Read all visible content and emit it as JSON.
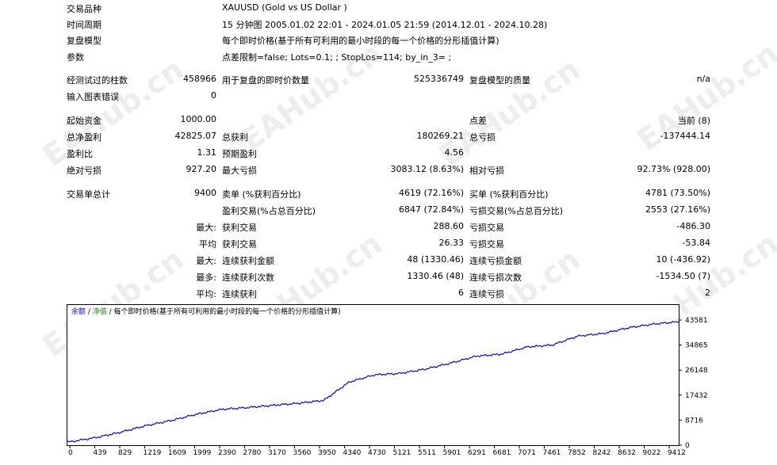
{
  "report": {
    "header": [
      {
        "label": "交易品种",
        "value": "XAUUSD (Gold vs US Dollar )"
      },
      {
        "label": "时间周期",
        "value": "15 分钟图 2005.01.02 22:01 - 2024.01.05 21:59 (2014.12.01 - 2024.10.28)"
      },
      {
        "label": "复盘模型",
        "value": "每个即时价格(基于所有可利用的最小时段的每一个价格的分形插值计算)"
      },
      {
        "label": "参数",
        "value": "点差限制=false; Lots=0.1; ; StopLos=114; by_in_3= ;"
      }
    ],
    "bars": {
      "label": "经测试过的柱数",
      "value": "458966",
      "ticks_label": "用于复盘的即时价数量",
      "ticks_value": "525336749",
      "quality_label": "复盘模型的质量",
      "quality_value": "n/a"
    },
    "errors": {
      "label": "输入图表错误",
      "value": "0"
    },
    "deposit": {
      "label": "起始资金",
      "value": "1000.00",
      "spread_label": "点差",
      "spread_value": "当前 (8)"
    },
    "net": {
      "label": "总净盈利",
      "value": "42825.07",
      "gp_label": "总获利",
      "gp_value": "180269.21",
      "gl_label": "总亏损",
      "gl_value": "-137444.14"
    },
    "pf": {
      "label": "盈利比",
      "value": "1.31",
      "ep_label": "预期盈利",
      "ep_value": "4.56"
    },
    "dd": {
      "label": "绝对亏损",
      "value": "927.20",
      "maxdd_label": "最大亏损",
      "maxdd_value": "3083.12 (8.63%)",
      "reldd_label": "相对亏损",
      "reldd_value": "92.73% (928.00)"
    },
    "trades": {
      "label": "交易单总计",
      "value": "9400",
      "short_label": "卖单 (%获利百分比)",
      "short_value": "4619 (72.16%)",
      "long_label": "买单 (%获利百分比)",
      "long_value": "4781 (73.50%)"
    },
    "pt": {
      "pt_label": "盈利交易(%占总百分比)",
      "pt_value": "6847 (72.84%)",
      "lt_label": "亏损交易(%占总百分比)",
      "lt_value": "2553 (27.16%)"
    },
    "largest": {
      "prefix": "最大:",
      "p_label": "获利交易",
      "p_value": "288.60",
      "l_label": "亏损交易",
      "l_value": "-486.30"
    },
    "average": {
      "prefix": "平均",
      "p_label": "获利交易",
      "p_value": "26.33",
      "l_label": "亏损交易",
      "l_value": "-53.84"
    },
    "maxcons": {
      "prefix": "最大:",
      "p_label": "连续获利金额",
      "p_value": "48 (1330.46)",
      "l_label": "连续亏损金额",
      "l_value": "10 (-436.92)"
    },
    "maxconsc": {
      "prefix": "最多:",
      "p_label": "连续获利次数",
      "p_value": "1330.46 (48)",
      "l_label": "连续亏损次数",
      "l_value": "-1534.50 (7)"
    },
    "avgcons": {
      "prefix": "平均:",
      "p_label": "连续获利",
      "p_value": "6",
      "l_label": "连续亏损",
      "l_value": "2"
    }
  },
  "legend": {
    "balance": "余额",
    "sep": " / ",
    "equity": "净值",
    "rest": " / 每个即时价格(基于所有可利用的最小时段的每一个价格的分形插值计算)"
  },
  "watermark": "EAHub.cn",
  "chart_data": {
    "type": "line",
    "x_ticks": [
      "0",
      "439",
      "829",
      "1219",
      "1609",
      "1999",
      "2390",
      "2780",
      "3170",
      "3560",
      "3950",
      "4340",
      "4730",
      "5121",
      "5511",
      "5901",
      "6291",
      "6681",
      "7071",
      "7461",
      "7852",
      "8242",
      "8632",
      "9022",
      "9412"
    ],
    "y_ticks": [
      "43581",
      "34865",
      "26148",
      "17432",
      "8716",
      "0"
    ],
    "ylim": [
      0,
      43581
    ],
    "xlim": [
      0,
      9400
    ],
    "series": [
      {
        "color": "#1a1aa0",
        "x": [
          0,
          439,
          829,
          1219,
          1609,
          1999,
          2390,
          2780,
          3170,
          3560,
          3950,
          4340,
          4730,
          5121,
          5511,
          5901,
          6291,
          6681,
          7071,
          7461,
          7852,
          8242,
          8632,
          9022,
          9400
        ],
        "values": [
          1000,
          2600,
          4500,
          6800,
          8600,
          10800,
          12500,
          13100,
          13900,
          14600,
          15600,
          22000,
          24500,
          25000,
          26500,
          28600,
          31000,
          31700,
          34200,
          34900,
          38000,
          38900,
          40900,
          42200,
          43000
        ]
      }
    ]
  }
}
